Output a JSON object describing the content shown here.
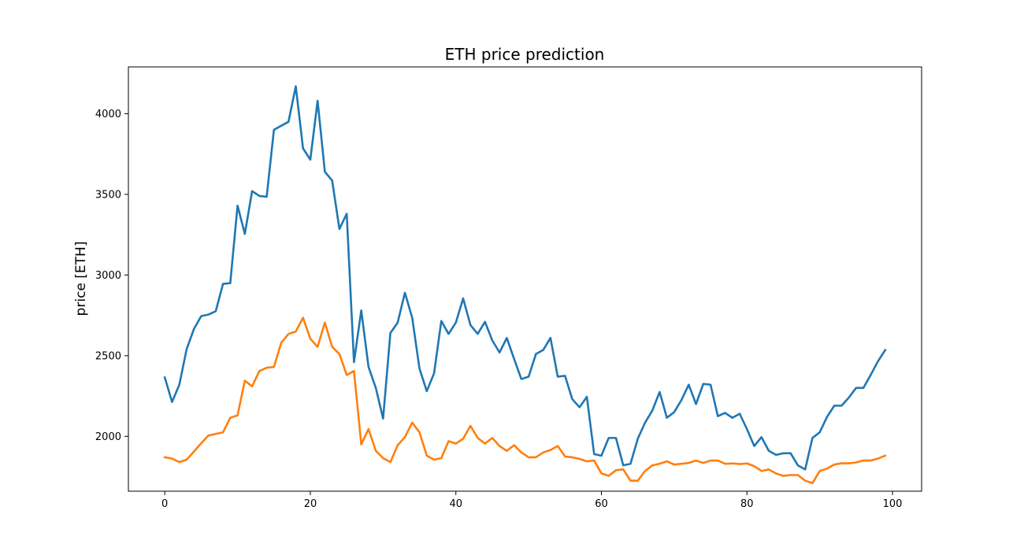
{
  "chart_data": {
    "type": "line",
    "title": "ETH price prediction",
    "xlabel": "",
    "ylabel": "price [ETH]",
    "xlim": [
      -5,
      104
    ],
    "ylim": [
      1660,
      4290
    ],
    "xticks": [
      0,
      20,
      40,
      60,
      80,
      100
    ],
    "yticks": [
      2000,
      2500,
      3000,
      3500,
      4000
    ],
    "grid": false,
    "legend": "none",
    "series": [
      {
        "color": "#1f77b4",
        "x": [
          0,
          1,
          2,
          3,
          4,
          5,
          6,
          7,
          8,
          9,
          10,
          11,
          12,
          13,
          14,
          15,
          16,
          17,
          18,
          19,
          20,
          21,
          22,
          23,
          24,
          25,
          26,
          27,
          28,
          29,
          30,
          31,
          32,
          33,
          34,
          35,
          36,
          37,
          38,
          39,
          40,
          41,
          42,
          43,
          44,
          45,
          46,
          47,
          48,
          49,
          50,
          51,
          52,
          53,
          54,
          55,
          56,
          57,
          58,
          59,
          60,
          61,
          62,
          63,
          64,
          65,
          66,
          67,
          68,
          69,
          70,
          71,
          72,
          73,
          74,
          75,
          76,
          77,
          78,
          79,
          80,
          81,
          82,
          83,
          84,
          85,
          86,
          87,
          88,
          89,
          90,
          91,
          92,
          93,
          94,
          95,
          96,
          97,
          98,
          99
        ],
        "values": [
          2365,
          2213,
          2320,
          2540,
          2665,
          2745,
          2755,
          2775,
          2945,
          2950,
          3430,
          3255,
          3520,
          3490,
          3485,
          3900,
          3925,
          3950,
          4170,
          3785,
          3715,
          4080,
          3640,
          3585,
          3285,
          3380,
          2460,
          2780,
          2430,
          2300,
          2110,
          2640,
          2705,
          2890,
          2735,
          2420,
          2280,
          2390,
          2715,
          2635,
          2705,
          2855,
          2690,
          2635,
          2710,
          2595,
          2520,
          2610,
          2480,
          2355,
          2370,
          2510,
          2535,
          2610,
          2370,
          2375,
          2230,
          2180,
          2245,
          1890,
          1880,
          1990,
          1990,
          1820,
          1830,
          1985,
          2085,
          2160,
          2275,
          2115,
          2150,
          2225,
          2320,
          2200,
          2325,
          2320,
          2125,
          2145,
          2115,
          2140,
          2045,
          1940,
          1995,
          1910,
          1885,
          1895,
          1895,
          1820,
          1795,
          1990,
          2025,
          2120,
          2190,
          2190,
          2240,
          2300,
          2300,
          2380,
          2465,
          2535
        ]
      },
      {
        "color": "#ff7f0e",
        "x": [
          0,
          1,
          2,
          3,
          4,
          5,
          6,
          7,
          8,
          9,
          10,
          11,
          12,
          13,
          14,
          15,
          16,
          17,
          18,
          19,
          20,
          21,
          22,
          23,
          24,
          25,
          26,
          27,
          28,
          29,
          30,
          31,
          32,
          33,
          34,
          35,
          36,
          37,
          38,
          39,
          40,
          41,
          42,
          43,
          44,
          45,
          46,
          47,
          48,
          49,
          50,
          51,
          52,
          53,
          54,
          55,
          56,
          57,
          58,
          59,
          60,
          61,
          62,
          63,
          64,
          65,
          66,
          67,
          68,
          69,
          70,
          71,
          72,
          73,
          74,
          75,
          76,
          77,
          78,
          79,
          80,
          81,
          82,
          83,
          84,
          85,
          86,
          87,
          88,
          89,
          90,
          91,
          92,
          93,
          94,
          95,
          96,
          97,
          98,
          99
        ],
        "values": [
          1870,
          1862,
          1840,
          1855,
          1905,
          1957,
          2005,
          2015,
          2025,
          2115,
          2130,
          2345,
          2310,
          2405,
          2425,
          2430,
          2580,
          2635,
          2650,
          2735,
          2605,
          2555,
          2705,
          2555,
          2510,
          2380,
          2405,
          1950,
          2045,
          1910,
          1865,
          1840,
          1945,
          1995,
          2085,
          2025,
          1880,
          1855,
          1865,
          1970,
          1955,
          1985,
          2065,
          1990,
          1955,
          1990,
          1940,
          1910,
          1945,
          1900,
          1870,
          1870,
          1900,
          1915,
          1940,
          1875,
          1870,
          1860,
          1845,
          1850,
          1770,
          1755,
          1790,
          1795,
          1725,
          1725,
          1785,
          1820,
          1830,
          1845,
          1825,
          1830,
          1835,
          1850,
          1835,
          1850,
          1850,
          1830,
          1832,
          1828,
          1832,
          1815,
          1785,
          1795,
          1770,
          1755,
          1760,
          1760,
          1725,
          1710,
          1785,
          1800,
          1825,
          1833,
          1833,
          1838,
          1850,
          1850,
          1862,
          1880
        ]
      }
    ]
  }
}
